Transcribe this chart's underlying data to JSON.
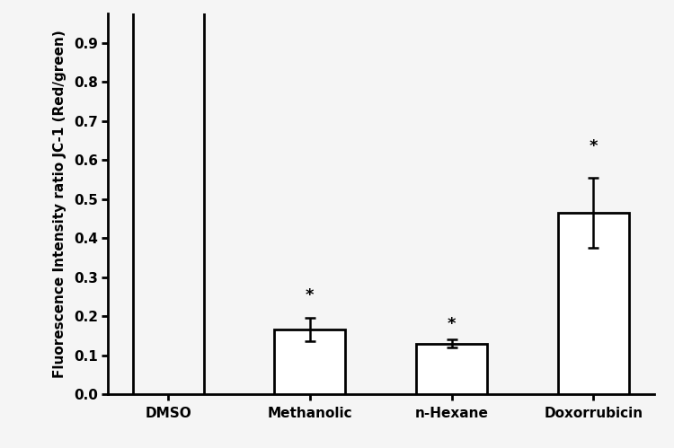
{
  "categories": [
    "DMSO",
    "Methanolic",
    "n-Hexane",
    "Doxorrubicin"
  ],
  "values": [
    1.05,
    0.165,
    0.13,
    0.465
  ],
  "errors": [
    0.0,
    0.03,
    0.01,
    0.09
  ],
  "show_star": [
    false,
    true,
    true,
    true
  ],
  "bar_color": "#ffffff",
  "bar_edgecolor": "#000000",
  "bar_linewidth": 2.0,
  "errorbar_color": "#000000",
  "errorbar_linewidth": 1.8,
  "errorbar_capsize": 4,
  "ylabel": "Fluorescence Intensity ratio JC-1 (Red/green)",
  "ylim": [
    0.0,
    0.975
  ],
  "yticks": [
    0.0,
    0.1,
    0.2,
    0.3,
    0.4,
    0.5,
    0.6,
    0.7,
    0.8,
    0.9
  ],
  "ylabel_fontsize": 11,
  "tick_fontsize": 11,
  "xlabel_fontsize": 11,
  "star_fontsize": 13,
  "background_color": "#f5f5f5",
  "bar_width": 0.5,
  "star_offsets": [
    0,
    0.038,
    0.018,
    0.06
  ]
}
